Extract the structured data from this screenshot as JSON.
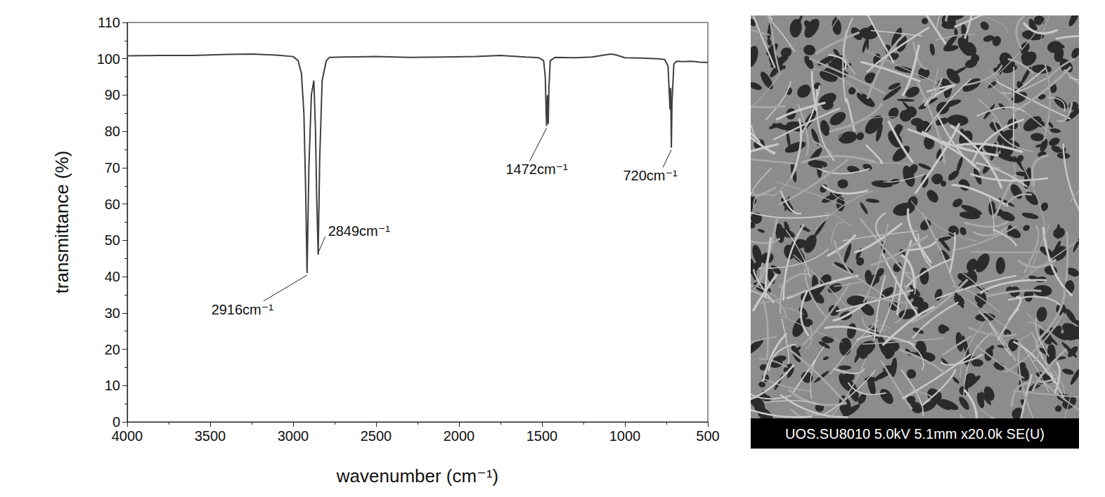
{
  "chart_data": {
    "type": "line",
    "x_label": "wavenumber (cm⁻¹)",
    "y_label": "transmittance (%)",
    "x": [
      4000,
      3800,
      3600,
      3400,
      3250,
      3100,
      3000,
      2970,
      2950,
      2935,
      2925,
      2916,
      2905,
      2890,
      2875,
      2865,
      2858,
      2849,
      2840,
      2825,
      2800,
      2780,
      2700,
      2500,
      2300,
      2100,
      1900,
      1750,
      1600,
      1520,
      1490,
      1480,
      1474,
      1472,
      1467,
      1462,
      1458,
      1450,
      1420,
      1300,
      1200,
      1100,
      1080,
      1050,
      1000,
      900,
      800,
      760,
      740,
      732,
      728,
      724,
      720,
      716,
      705,
      690,
      650,
      600,
      550,
      500
    ],
    "values": [
      100.8,
      100.9,
      100.9,
      101.2,
      101.3,
      101.0,
      100.6,
      99.5,
      96,
      85,
      65,
      41,
      70,
      90,
      94,
      80,
      62,
      46,
      72,
      94,
      99.5,
      100.4,
      100.5,
      100.6,
      100.4,
      100.5,
      100.6,
      100.9,
      100.5,
      100.3,
      99.5,
      95,
      84,
      81.5,
      90,
      82,
      92,
      99.5,
      100.4,
      100.3,
      100.5,
      101.2,
      101.3,
      101,
      100.3,
      100.2,
      100,
      99.8,
      98,
      90,
      86,
      92,
      75.5,
      88,
      98.5,
      99.3,
      99.2,
      99.3,
      99.1,
      99.0
    ],
    "color": "#404040",
    "xlim": [
      4000,
      500
    ],
    "xticks": [
      4000,
      3500,
      3000,
      2500,
      2000,
      1500,
      1000,
      500
    ],
    "ylim": [
      0,
      110
    ],
    "yticks": [
      0,
      10,
      20,
      30,
      40,
      50,
      60,
      70,
      80,
      90,
      100,
      110
    ],
    "grid": false,
    "annotations": [
      {
        "text": "2916cm⁻¹",
        "x": 2916,
        "y": 41
      },
      {
        "text": "2849cm⁻¹",
        "x": 2849,
        "y": 46
      },
      {
        "text": "1472cm⁻¹",
        "x": 1472,
        "y": 81.5
      },
      {
        "text": "720cm⁻¹",
        "x": 720,
        "y": 75.5
      }
    ]
  },
  "sem_image": {
    "caption": "UOS.SU8010 5.0kV 5.1mm x20.0k SE(U)"
  }
}
